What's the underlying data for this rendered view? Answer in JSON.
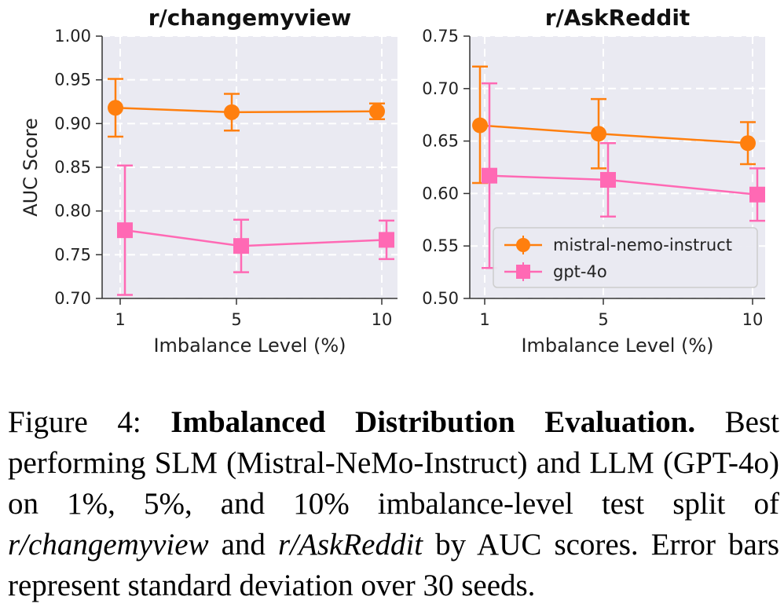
{
  "chart_data": [
    {
      "type": "line",
      "title": "r/changemyview",
      "xlabel": "Imbalance Level (%)",
      "ylabel": "AUC Score",
      "x": [
        1,
        5,
        10
      ],
      "xticks": [
        "1",
        "5",
        "10"
      ],
      "ylim": [
        0.7,
        1.0
      ],
      "yticks": [
        "0.70",
        "0.75",
        "0.80",
        "0.85",
        "0.90",
        "0.95",
        "1.00"
      ],
      "grid": true,
      "series": [
        {
          "name": "mistral-nemo-instruct",
          "color": "#ff7f0e",
          "marker": "circle",
          "values": [
            0.918,
            0.913,
            0.914
          ],
          "err_low": [
            0.885,
            0.892,
            0.905
          ],
          "err_high": [
            0.951,
            0.934,
            0.923
          ]
        },
        {
          "name": "gpt-4o",
          "color": "#ff69b4",
          "marker": "square",
          "values": [
            0.778,
            0.76,
            0.767
          ],
          "err_low": [
            0.704,
            0.73,
            0.745
          ],
          "err_high": [
            0.852,
            0.79,
            0.789
          ]
        }
      ]
    },
    {
      "type": "line",
      "title": "r/AskReddit",
      "xlabel": "Imbalance Level (%)",
      "ylabel": "",
      "x": [
        1,
        5,
        10
      ],
      "xticks": [
        "1",
        "5",
        "10"
      ],
      "ylim": [
        0.5,
        0.75
      ],
      "yticks": [
        "0.50",
        "0.55",
        "0.60",
        "0.65",
        "0.70",
        "0.75"
      ],
      "grid": true,
      "legend": "lower-right",
      "series": [
        {
          "name": "mistral-nemo-instruct",
          "color": "#ff7f0e",
          "marker": "circle",
          "values": [
            0.665,
            0.657,
            0.648
          ],
          "err_low": [
            0.61,
            0.624,
            0.628
          ],
          "err_high": [
            0.721,
            0.69,
            0.668
          ]
        },
        {
          "name": "gpt-4o",
          "color": "#ff69b4",
          "marker": "square",
          "values": [
            0.617,
            0.613,
            0.599
          ],
          "err_low": [
            0.529,
            0.578,
            0.574
          ],
          "err_high": [
            0.705,
            0.648,
            0.624
          ]
        }
      ]
    }
  ],
  "caption": {
    "prefix": "Figure 4: ",
    "bold": "Imbalanced Distribution Evaluation.",
    "text1": " Best performing SLM (Mistral-NeMo-Instruct) and LLM (GPT-4o) on 1%, 5%, and 10% imbalance-level test split of ",
    "italic1": "r/changemyview",
    "text2": " and ",
    "italic2": "r/AskReddit",
    "text3": " by AUC scores. Error bars represent standard deviation over 30 seeds."
  }
}
